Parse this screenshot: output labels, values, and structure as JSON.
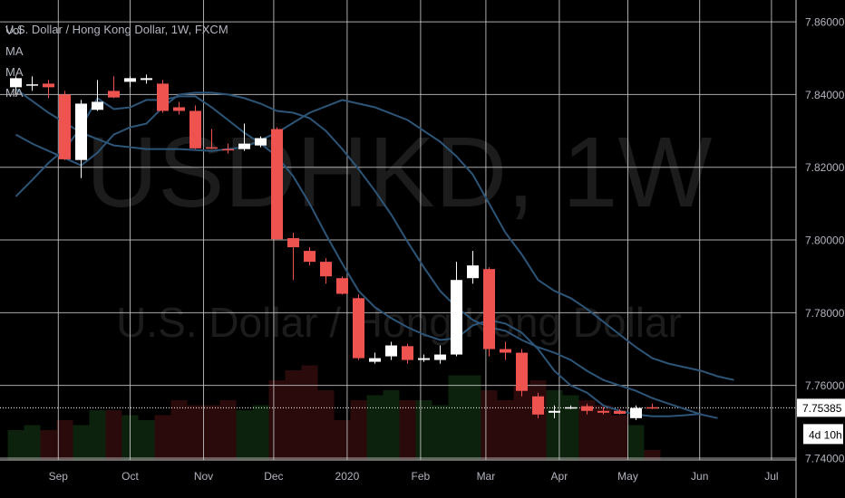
{
  "chart_data": {
    "type": "candlestick",
    "header": "U.S. Dollar / Hong Kong Dollar, 1W, FXCM",
    "watermark_symbol": "USDHKD, 1W",
    "watermark_name": "U.S. Dollar / Hong Kong Dollar",
    "indicators": [
      "Vol",
      "MA",
      "MA",
      "MA"
    ],
    "y_ticks": [
      "7.86000",
      "7.84000",
      "7.82000",
      "7.80000",
      "7.78000",
      "7.76000",
      "7.74000"
    ],
    "y_tick_values": [
      7.86,
      7.84,
      7.82,
      7.8,
      7.78,
      7.76,
      7.74
    ],
    "ylim": [
      7.7395,
      7.866
    ],
    "x_labels": [
      {
        "label": "Sep",
        "week": 2.6
      },
      {
        "label": "Oct",
        "week": 7.0
      },
      {
        "label": "Nov",
        "week": 11.5
      },
      {
        "label": "Dec",
        "week": 15.8
      },
      {
        "label": "2020",
        "week": 20.3
      },
      {
        "label": "Feb",
        "week": 24.8
      },
      {
        "label": "Mar",
        "week": 28.8
      },
      {
        "label": "Apr",
        "week": 33.3
      },
      {
        "label": "May",
        "week": 37.5
      },
      {
        "label": "Jun",
        "week": 41.9
      },
      {
        "label": "Jul",
        "week": 46.3
      }
    ],
    "current_price": "7.75385",
    "current_price_value": 7.75385,
    "countdown": "4d 10h",
    "candles": [
      {
        "o": 7.842,
        "h": 7.845,
        "l": 7.84,
        "c": 7.8445
      },
      {
        "o": 7.8425,
        "h": 7.845,
        "l": 7.841,
        "c": 7.8428
      },
      {
        "o": 7.843,
        "h": 7.844,
        "l": 7.839,
        "c": 7.842
      },
      {
        "o": 7.84,
        "h": 7.841,
        "l": 7.822,
        "c": 7.8222
      },
      {
        "o": 7.822,
        "h": 7.8385,
        "l": 7.817,
        "c": 7.8375
      },
      {
        "o": 7.8358,
        "h": 7.844,
        "l": 7.8355,
        "c": 7.838
      },
      {
        "o": 7.841,
        "h": 7.845,
        "l": 7.839,
        "c": 7.8392
      },
      {
        "o": 7.8435,
        "h": 7.845,
        "l": 7.842,
        "c": 7.8445
      },
      {
        "o": 7.844,
        "h": 7.8455,
        "l": 7.843,
        "c": 7.8445
      },
      {
        "o": 7.843,
        "h": 7.844,
        "l": 7.835,
        "c": 7.8355
      },
      {
        "o": 7.8365,
        "h": 7.838,
        "l": 7.8345,
        "c": 7.8355
      },
      {
        "o": 7.8355,
        "h": 7.837,
        "l": 7.825,
        "c": 7.8252
      },
      {
        "o": 7.8255,
        "h": 7.8305,
        "l": 7.825,
        "c": 7.8252
      },
      {
        "o": 7.825,
        "h": 7.8265,
        "l": 7.8238,
        "c": 7.8248
      },
      {
        "o": 7.825,
        "h": 7.832,
        "l": 7.8245,
        "c": 7.8265
      },
      {
        "o": 7.826,
        "h": 7.8285,
        "l": 7.8255,
        "c": 7.828
      },
      {
        "o": 7.8305,
        "h": 7.831,
        "l": 7.8,
        "c": 7.8002
      },
      {
        "o": 7.8005,
        "h": 7.802,
        "l": 7.789,
        "c": 7.798
      },
      {
        "o": 7.797,
        "h": 7.798,
        "l": 7.793,
        "c": 7.794
      },
      {
        "o": 7.794,
        "h": 7.795,
        "l": 7.788,
        "c": 7.79
      },
      {
        "o": 7.7895,
        "h": 7.79,
        "l": 7.785,
        "c": 7.7852
      },
      {
        "o": 7.784,
        "h": 7.785,
        "l": 7.767,
        "c": 7.7675
      },
      {
        "o": 7.7665,
        "h": 7.769,
        "l": 7.766,
        "c": 7.7675
      },
      {
        "o": 7.768,
        "h": 7.772,
        "l": 7.767,
        "c": 7.771
      },
      {
        "o": 7.7708,
        "h": 7.7715,
        "l": 7.766,
        "c": 7.767
      },
      {
        "o": 7.767,
        "h": 7.7685,
        "l": 7.7665,
        "c": 7.7675
      },
      {
        "o": 7.767,
        "h": 7.771,
        "l": 7.766,
        "c": 7.7685
      },
      {
        "o": 7.7685,
        "h": 7.794,
        "l": 7.768,
        "c": 7.789
      },
      {
        "o": 7.7895,
        "h": 7.797,
        "l": 7.788,
        "c": 7.793
      },
      {
        "o": 7.792,
        "h": 7.7925,
        "l": 7.768,
        "c": 7.77
      },
      {
        "o": 7.77,
        "h": 7.772,
        "l": 7.767,
        "c": 7.769
      },
      {
        "o": 7.769,
        "h": 7.77,
        "l": 7.757,
        "c": 7.7585
      },
      {
        "o": 7.757,
        "h": 7.758,
        "l": 7.751,
        "c": 7.752
      },
      {
        "o": 7.7525,
        "h": 7.7545,
        "l": 7.751,
        "c": 7.753
      },
      {
        "o": 7.754,
        "h": 7.7545,
        "l": 7.7535,
        "c": 7.754
      },
      {
        "o": 7.7543,
        "h": 7.755,
        "l": 7.752,
        "c": 7.753
      },
      {
        "o": 7.753,
        "h": 7.754,
        "l": 7.752,
        "c": 7.7525
      },
      {
        "o": 7.753,
        "h": 7.7535,
        "l": 7.752,
        "c": 7.7522
      },
      {
        "o": 7.751,
        "h": 7.7545,
        "l": 7.7505,
        "c": 7.7538
      },
      {
        "o": 7.754,
        "h": 7.755,
        "l": 7.7535,
        "c": 7.75385
      }
    ],
    "volume": {
      "values": [
        0.3,
        0.35,
        0.3,
        0.4,
        0.35,
        0.5,
        0.5,
        0.45,
        0.4,
        0.45,
        0.6,
        0.55,
        0.55,
        0.6,
        0.5,
        0.55,
        0.8,
        0.9,
        0.95,
        0.7,
        0.4,
        0.6,
        0.65,
        0.7,
        0.6,
        0.6,
        0.55,
        0.85,
        0.85,
        0.7,
        0.6,
        0.75,
        0.8,
        0.7,
        0.65,
        0.6,
        0.55,
        0.45,
        0.35,
        0.1
      ],
      "ymax": 1.0
    },
    "moving_averages": [
      {
        "points": [
          [
            0,
            7.812
          ],
          [
            1,
            7.8165
          ],
          [
            2,
            7.8212
          ],
          [
            3,
            7.825
          ],
          [
            4,
            7.831
          ],
          [
            5,
            7.839
          ],
          [
            6,
            7.836
          ],
          [
            7,
            7.8365
          ],
          [
            8,
            7.8385
          ],
          [
            9,
            7.8385
          ],
          [
            10,
            7.8395
          ],
          [
            11,
            7.8395
          ],
          [
            12,
            7.8365
          ],
          [
            13,
            7.833
          ],
          [
            14,
            7.8295
          ],
          [
            15,
            7.8265
          ],
          [
            16,
            7.823
          ],
          [
            17,
            7.8175
          ],
          [
            18,
            7.81
          ],
          [
            19,
            7.8015
          ],
          [
            20,
            7.7935
          ],
          [
            21,
            7.786
          ],
          [
            22,
            7.7815
          ],
          [
            23,
            7.7785
          ],
          [
            24,
            7.776
          ],
          [
            25,
            7.774
          ],
          [
            26,
            7.7725
          ],
          [
            27,
            7.773
          ],
          [
            28,
            7.7765
          ],
          [
            29,
            7.778
          ],
          [
            30,
            7.777
          ],
          [
            31,
            7.7745
          ],
          [
            32,
            7.77
          ],
          [
            33,
            7.764
          ],
          [
            34,
            7.76
          ],
          [
            35,
            7.758
          ],
          [
            36,
            7.7545
          ],
          [
            37,
            7.753
          ],
          [
            38,
            7.752
          ],
          [
            39,
            7.7515
          ],
          [
            40,
            7.7515
          ],
          [
            41,
            7.7518
          ],
          [
            42,
            7.7522
          ]
        ]
      },
      {
        "points": [
          [
            0,
            7.829
          ],
          [
            1,
            7.8265
          ],
          [
            2,
            7.8245
          ],
          [
            3,
            7.8225
          ],
          [
            4,
            7.8205
          ],
          [
            5,
            7.824
          ],
          [
            6,
            7.829
          ],
          [
            7,
            7.831
          ],
          [
            8,
            7.832
          ],
          [
            9,
            7.8365
          ],
          [
            10,
            7.84
          ],
          [
            11,
            7.8405
          ],
          [
            12,
            7.8405
          ],
          [
            13,
            7.84
          ],
          [
            14,
            7.839
          ],
          [
            15,
            7.8375
          ],
          [
            16,
            7.8355
          ],
          [
            17,
            7.835
          ],
          [
            18,
            7.8335
          ],
          [
            19,
            7.83
          ],
          [
            20,
            7.825
          ],
          [
            21,
            7.8195
          ],
          [
            22,
            7.8135
          ],
          [
            23,
            7.807
          ],
          [
            24,
            7.7995
          ],
          [
            25,
            7.7925
          ],
          [
            26,
            7.786
          ],
          [
            27,
            7.7815
          ],
          [
            28,
            7.778
          ],
          [
            29,
            7.776
          ],
          [
            30,
            7.775
          ],
          [
            31,
            7.7725
          ],
          [
            32,
            7.7705
          ],
          [
            33,
            7.769
          ],
          [
            34,
            7.767
          ],
          [
            35,
            7.764
          ],
          [
            36,
            7.7615
          ],
          [
            37,
            7.76
          ],
          [
            38,
            7.7585
          ],
          [
            39,
            7.7565
          ],
          [
            40,
            7.755
          ],
          [
            41,
            7.7535
          ],
          [
            42,
            7.752
          ],
          [
            43,
            7.751
          ]
        ]
      },
      {
        "points": [
          [
            0,
            7.8415
          ],
          [
            2,
            7.835
          ],
          [
            4,
            7.8295
          ],
          [
            6,
            7.826
          ],
          [
            8,
            7.825
          ],
          [
            10,
            7.825
          ],
          [
            12,
            7.8245
          ],
          [
            14,
            7.8255
          ],
          [
            16,
            7.8295
          ],
          [
            18,
            7.835
          ],
          [
            20,
            7.8385
          ],
          [
            22,
            7.8365
          ],
          [
            24,
            7.833
          ],
          [
            26,
            7.827
          ],
          [
            27,
            7.823
          ],
          [
            28,
            7.818
          ],
          [
            29,
            7.81
          ],
          [
            30,
            7.802
          ],
          [
            31,
            7.796
          ],
          [
            32,
            7.789
          ],
          [
            33,
            7.786
          ],
          [
            34,
            7.784
          ],
          [
            35,
            7.781
          ],
          [
            36,
            7.7775
          ],
          [
            37,
            7.774
          ],
          [
            38,
            7.7705
          ],
          [
            39,
            7.7675
          ],
          [
            40,
            7.766
          ],
          [
            41,
            7.765
          ],
          [
            42,
            7.764
          ],
          [
            43,
            7.7625
          ],
          [
            44,
            7.7615
          ]
        ]
      }
    ],
    "colors": {
      "background": "#000000",
      "grid": "#c8c8c8",
      "up": "#ffffff",
      "down": "#ef5350",
      "ma": "#2d5578",
      "axis_text": "#b2b5be",
      "price_label_bg": "#ffffff",
      "price_label_text": "#000000",
      "watermark": "#1c1c1c",
      "volume_up": "#0c220c",
      "volume_down": "#2a0a0a"
    }
  }
}
